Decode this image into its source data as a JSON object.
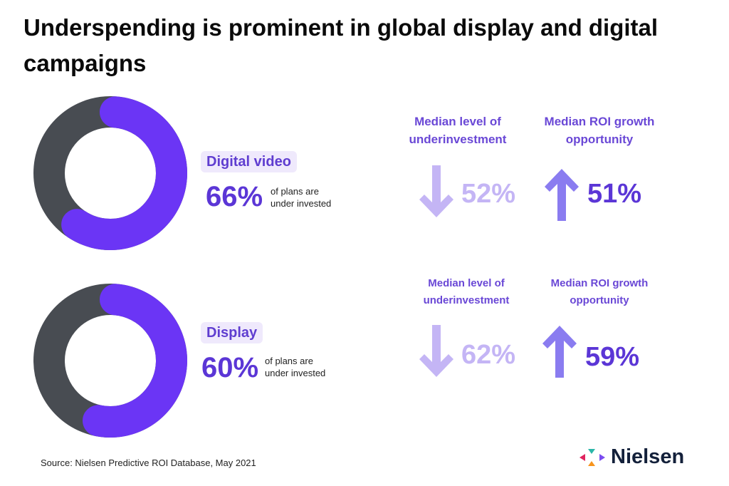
{
  "title": "Underspending is prominent in global display and digital campaigns",
  "colors": {
    "purple": "#6b35f5",
    "dark": "#484c52",
    "light_purple": "#c4b5f5",
    "mid_purple": "#8a7cf0",
    "text_purple": "#5b36d6"
  },
  "rows": [
    {
      "channel": "Digital video",
      "percent_label": "66%",
      "percent": 66,
      "caption_line1": "of plans are",
      "caption_line2": "under invested",
      "underinvest_header_1": "Median level of",
      "underinvest_header_2": "underinvestment",
      "underinvest_value": "52%",
      "roi_header_1": "Median ROI growth",
      "roi_header_2": "opportunity",
      "roi_value": "51%"
    },
    {
      "channel": "Display",
      "percent_label": "60%",
      "percent": 60,
      "caption_line1": "of plans are",
      "caption_line2": "under invested",
      "underinvest_header_1": "Median level of",
      "underinvest_header_2": "underinvestment",
      "underinvest_value": "62%",
      "roi_header_1": "Median ROI growth",
      "roi_header_2": "opportunity",
      "roi_value": "59%"
    }
  ],
  "source": "Source: Nielsen Predictive ROI Database, May 2021",
  "logo": {
    "text": "Nielsen"
  }
}
